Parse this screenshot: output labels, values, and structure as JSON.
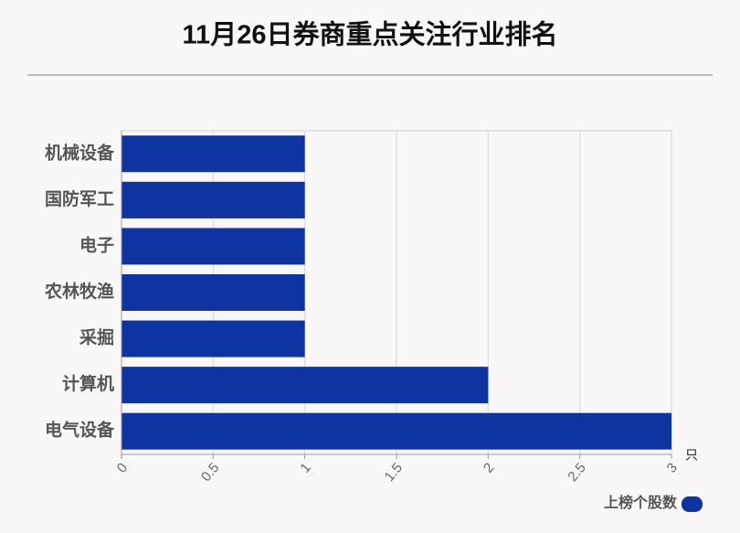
{
  "chart_data": {
    "type": "bar",
    "orientation": "horizontal",
    "title": "11月26日券商重点关注行业排名",
    "categories": [
      "机械设备",
      "国防军工",
      "电子",
      "农林牧渔",
      "采掘",
      "计算机",
      "电气设备"
    ],
    "series": [
      {
        "name": "上榜个股数",
        "color": "#0d34a0",
        "values": [
          1,
          1,
          1,
          1,
          1,
          2,
          3
        ]
      }
    ],
    "xlim": [
      0,
      3
    ],
    "xticks": [
      0,
      0.5,
      1,
      1.5,
      2,
      2.5,
      3
    ],
    "x_unit": "只",
    "grid": true,
    "legend": "bottom-right"
  }
}
